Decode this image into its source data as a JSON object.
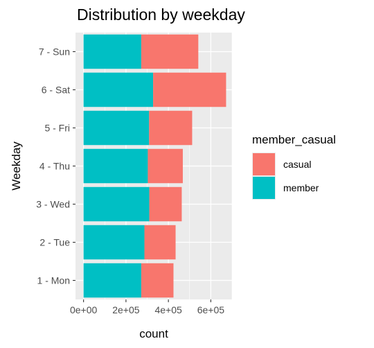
{
  "chart_data": {
    "type": "bar",
    "orientation": "horizontal",
    "stacked": true,
    "title": "Distribution by weekday",
    "xlabel": "count",
    "ylabel": "Weekday",
    "categories": [
      "1 - Mon",
      "2 - Tue",
      "3 - Wed",
      "4 - Thu",
      "5 - Fri",
      "6 - Sat",
      "7 - Sun"
    ],
    "series": [
      {
        "name": "member",
        "color": "#00BFC4",
        "values": [
          272000,
          287000,
          310000,
          303000,
          309000,
          328000,
          272000
        ]
      },
      {
        "name": "casual",
        "color": "#F8766D",
        "values": [
          152000,
          147000,
          153000,
          165000,
          203000,
          344000,
          269000
        ]
      }
    ],
    "xlim": [
      -38000,
      700000
    ],
    "xticks": [
      0,
      200000,
      400000,
      600000
    ],
    "xtick_labels": [
      "0e+00",
      "2e+05",
      "4e+05",
      "6e+05"
    ],
    "legend": {
      "title": "member_casual",
      "position": "right",
      "entries": [
        "casual",
        "member"
      ]
    },
    "grid": true
  }
}
